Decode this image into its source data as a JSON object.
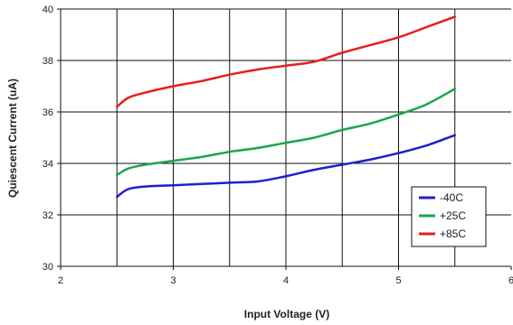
{
  "chart_data": {
    "type": "line",
    "title": "",
    "xlabel": "Input Voltage (V)",
    "ylabel": "Quiescent Current (uA)",
    "xlim": [
      2,
      6
    ],
    "ylim": [
      30,
      40
    ],
    "x_ticks": [
      "2",
      "3",
      "4",
      "5",
      "6"
    ],
    "y_ticks": [
      "30",
      "32",
      "34",
      "36",
      "38",
      "40"
    ],
    "grid": true,
    "legend_position": "bottom-right",
    "series": [
      {
        "name": "-40C",
        "color": "#1f1fcc",
        "x": [
          2.5,
          2.6,
          2.75,
          3.0,
          3.25,
          3.5,
          3.75,
          4.0,
          4.25,
          4.5,
          4.75,
          5.0,
          5.25,
          5.5
        ],
        "y": [
          32.7,
          33.0,
          33.1,
          33.15,
          33.2,
          33.25,
          33.3,
          33.5,
          33.75,
          33.95,
          34.15,
          34.4,
          34.7,
          35.1
        ]
      },
      {
        "name": "+25C",
        "color": "#1aa64a",
        "x": [
          2.5,
          2.6,
          2.75,
          3.0,
          3.25,
          3.5,
          3.75,
          4.0,
          4.25,
          4.5,
          4.75,
          5.0,
          5.25,
          5.5
        ],
        "y": [
          33.55,
          33.8,
          33.95,
          34.1,
          34.25,
          34.45,
          34.6,
          34.8,
          35.0,
          35.3,
          35.55,
          35.9,
          36.3,
          36.9
        ]
      },
      {
        "name": "+85C",
        "color": "#e61e1e",
        "x": [
          2.5,
          2.6,
          2.75,
          3.0,
          3.25,
          3.5,
          3.75,
          4.0,
          4.25,
          4.5,
          4.75,
          5.0,
          5.25,
          5.5
        ],
        "y": [
          36.2,
          36.55,
          36.75,
          37.0,
          37.2,
          37.45,
          37.65,
          37.8,
          37.95,
          38.3,
          38.6,
          38.9,
          39.3,
          39.7
        ]
      }
    ]
  }
}
